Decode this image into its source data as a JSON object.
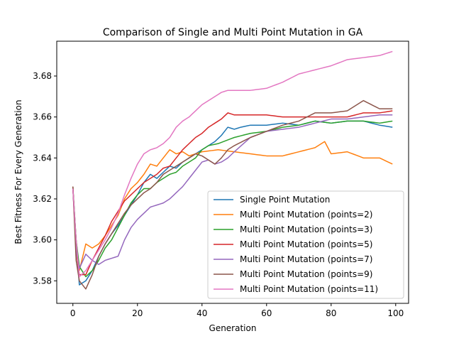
{
  "chart_data": {
    "type": "line",
    "title": "Comparison of Single and Multi Point Mutation in GA",
    "xlabel": "Generation",
    "ylabel": "Best Fitness For Every Generation",
    "xlim": [
      -5,
      104
    ],
    "ylim": [
      3.569,
      3.697
    ],
    "xticks": [
      0,
      20,
      40,
      60,
      80,
      100
    ],
    "yticks": [
      3.58,
      3.6,
      3.62,
      3.64,
      3.66,
      3.68
    ],
    "ytick_labels": [
      "3.58",
      "3.60",
      "3.62",
      "3.64",
      "3.66",
      "3.68"
    ],
    "grid": false,
    "legend_position": "lower right",
    "x_points": 100,
    "series": [
      {
        "name": "Single Point Mutation",
        "color": "#1f77b4",
        "keypoints": [
          [
            0,
            3.625
          ],
          [
            1,
            3.6
          ],
          [
            2,
            3.578
          ],
          [
            4,
            3.58
          ],
          [
            6,
            3.585
          ],
          [
            8,
            3.592
          ],
          [
            10,
            3.598
          ],
          [
            12,
            3.603
          ],
          [
            14,
            3.607
          ],
          [
            16,
            3.612
          ],
          [
            18,
            3.617
          ],
          [
            20,
            3.622
          ],
          [
            22,
            3.628
          ],
          [
            24,
            3.632
          ],
          [
            26,
            3.63
          ],
          [
            28,
            3.633
          ],
          [
            30,
            3.636
          ],
          [
            32,
            3.635
          ],
          [
            34,
            3.638
          ],
          [
            36,
            3.64
          ],
          [
            38,
            3.642
          ],
          [
            40,
            3.644
          ],
          [
            42,
            3.646
          ],
          [
            44,
            3.648
          ],
          [
            46,
            3.651
          ],
          [
            48,
            3.655
          ],
          [
            50,
            3.654
          ],
          [
            52,
            3.655
          ],
          [
            55,
            3.656
          ],
          [
            60,
            3.656
          ],
          [
            65,
            3.657
          ],
          [
            70,
            3.656
          ],
          [
            75,
            3.658
          ],
          [
            80,
            3.657
          ],
          [
            85,
            3.658
          ],
          [
            90,
            3.658
          ],
          [
            95,
            3.656
          ],
          [
            99,
            3.655
          ]
        ]
      },
      {
        "name": "Multi Point Mutation (points=2)",
        "color": "#ff7f0e",
        "keypoints": [
          [
            0,
            3.625
          ],
          [
            1,
            3.6
          ],
          [
            2,
            3.585
          ],
          [
            4,
            3.598
          ],
          [
            6,
            3.596
          ],
          [
            8,
            3.598
          ],
          [
            10,
            3.602
          ],
          [
            12,
            3.607
          ],
          [
            14,
            3.612
          ],
          [
            16,
            3.62
          ],
          [
            18,
            3.625
          ],
          [
            20,
            3.628
          ],
          [
            22,
            3.632
          ],
          [
            24,
            3.637
          ],
          [
            26,
            3.636
          ],
          [
            28,
            3.64
          ],
          [
            30,
            3.644
          ],
          [
            32,
            3.642
          ],
          [
            34,
            3.643
          ],
          [
            36,
            3.641
          ],
          [
            38,
            3.642
          ],
          [
            40,
            3.643
          ],
          [
            45,
            3.644
          ],
          [
            50,
            3.643
          ],
          [
            55,
            3.642
          ],
          [
            60,
            3.641
          ],
          [
            65,
            3.641
          ],
          [
            70,
            3.643
          ],
          [
            75,
            3.645
          ],
          [
            78,
            3.648
          ],
          [
            80,
            3.642
          ],
          [
            85,
            3.643
          ],
          [
            90,
            3.64
          ],
          [
            95,
            3.64
          ],
          [
            99,
            3.637
          ]
        ]
      },
      {
        "name": "Multi Point Mutation (points=3)",
        "color": "#2ca02c",
        "keypoints": [
          [
            0,
            3.626
          ],
          [
            1,
            3.6
          ],
          [
            2,
            3.587
          ],
          [
            4,
            3.582
          ],
          [
            6,
            3.585
          ],
          [
            8,
            3.59
          ],
          [
            10,
            3.596
          ],
          [
            12,
            3.6
          ],
          [
            14,
            3.606
          ],
          [
            16,
            3.612
          ],
          [
            18,
            3.618
          ],
          [
            20,
            3.622
          ],
          [
            22,
            3.625
          ],
          [
            24,
            3.625
          ],
          [
            26,
            3.628
          ],
          [
            28,
            3.63
          ],
          [
            30,
            3.632
          ],
          [
            32,
            3.633
          ],
          [
            34,
            3.636
          ],
          [
            36,
            3.638
          ],
          [
            38,
            3.64
          ],
          [
            40,
            3.644
          ],
          [
            42,
            3.646
          ],
          [
            45,
            3.647
          ],
          [
            50,
            3.65
          ],
          [
            55,
            3.652
          ],
          [
            60,
            3.653
          ],
          [
            65,
            3.655
          ],
          [
            70,
            3.656
          ],
          [
            75,
            3.658
          ],
          [
            80,
            3.657
          ],
          [
            85,
            3.658
          ],
          [
            90,
            3.658
          ],
          [
            95,
            3.657
          ],
          [
            99,
            3.658
          ]
        ]
      },
      {
        "name": "Multi Point Mutation (points=5)",
        "color": "#d62728",
        "keypoints": [
          [
            0,
            3.626
          ],
          [
            1,
            3.595
          ],
          [
            2,
            3.583
          ],
          [
            4,
            3.583
          ],
          [
            6,
            3.59
          ],
          [
            8,
            3.596
          ],
          [
            10,
            3.602
          ],
          [
            12,
            3.609
          ],
          [
            14,
            3.614
          ],
          [
            16,
            3.619
          ],
          [
            18,
            3.622
          ],
          [
            20,
            3.625
          ],
          [
            22,
            3.628
          ],
          [
            24,
            3.63
          ],
          [
            26,
            3.632
          ],
          [
            28,
            3.635
          ],
          [
            30,
            3.636
          ],
          [
            32,
            3.64
          ],
          [
            34,
            3.644
          ],
          [
            36,
            3.647
          ],
          [
            38,
            3.65
          ],
          [
            40,
            3.652
          ],
          [
            42,
            3.655
          ],
          [
            44,
            3.657
          ],
          [
            46,
            3.659
          ],
          [
            48,
            3.662
          ],
          [
            50,
            3.661
          ],
          [
            55,
            3.661
          ],
          [
            60,
            3.661
          ],
          [
            65,
            3.66
          ],
          [
            70,
            3.66
          ],
          [
            75,
            3.66
          ],
          [
            80,
            3.66
          ],
          [
            85,
            3.66
          ],
          [
            90,
            3.662
          ],
          [
            95,
            3.662
          ],
          [
            99,
            3.663
          ]
        ]
      },
      {
        "name": "Multi Point Mutation (points=7)",
        "color": "#9467bd",
        "keypoints": [
          [
            0,
            3.625
          ],
          [
            1,
            3.595
          ],
          [
            2,
            3.586
          ],
          [
            4,
            3.593
          ],
          [
            6,
            3.59
          ],
          [
            8,
            3.588
          ],
          [
            10,
            3.59
          ],
          [
            12,
            3.591
          ],
          [
            14,
            3.592
          ],
          [
            16,
            3.6
          ],
          [
            18,
            3.606
          ],
          [
            20,
            3.61
          ],
          [
            22,
            3.613
          ],
          [
            24,
            3.616
          ],
          [
            26,
            3.617
          ],
          [
            28,
            3.618
          ],
          [
            30,
            3.62
          ],
          [
            32,
            3.623
          ],
          [
            34,
            3.626
          ],
          [
            36,
            3.63
          ],
          [
            38,
            3.634
          ],
          [
            40,
            3.638
          ],
          [
            42,
            3.639
          ],
          [
            44,
            3.637
          ],
          [
            46,
            3.638
          ],
          [
            48,
            3.64
          ],
          [
            50,
            3.643
          ],
          [
            55,
            3.65
          ],
          [
            60,
            3.653
          ],
          [
            65,
            3.654
          ],
          [
            70,
            3.655
          ],
          [
            75,
            3.657
          ],
          [
            80,
            3.659
          ],
          [
            85,
            3.659
          ],
          [
            90,
            3.66
          ],
          [
            95,
            3.661
          ],
          [
            99,
            3.661
          ]
        ]
      },
      {
        "name": "Multi Point Mutation (points=9)",
        "color": "#8c564b",
        "keypoints": [
          [
            0,
            3.626
          ],
          [
            1,
            3.59
          ],
          [
            2,
            3.58
          ],
          [
            4,
            3.576
          ],
          [
            6,
            3.583
          ],
          [
            8,
            3.592
          ],
          [
            10,
            3.598
          ],
          [
            12,
            3.603
          ],
          [
            14,
            3.608
          ],
          [
            16,
            3.613
          ],
          [
            18,
            3.617
          ],
          [
            20,
            3.62
          ],
          [
            22,
            3.623
          ],
          [
            24,
            3.625
          ],
          [
            26,
            3.628
          ],
          [
            28,
            3.632
          ],
          [
            30,
            3.634
          ],
          [
            32,
            3.636
          ],
          [
            34,
            3.638
          ],
          [
            36,
            3.64
          ],
          [
            38,
            3.642
          ],
          [
            40,
            3.641
          ],
          [
            42,
            3.639
          ],
          [
            44,
            3.637
          ],
          [
            46,
            3.64
          ],
          [
            48,
            3.644
          ],
          [
            50,
            3.646
          ],
          [
            55,
            3.65
          ],
          [
            60,
            3.653
          ],
          [
            65,
            3.656
          ],
          [
            70,
            3.658
          ],
          [
            75,
            3.662
          ],
          [
            80,
            3.662
          ],
          [
            85,
            3.663
          ],
          [
            90,
            3.668
          ],
          [
            95,
            3.664
          ],
          [
            99,
            3.664
          ]
        ]
      },
      {
        "name": "Multi Point Mutation (points=11)",
        "color": "#e377c2",
        "keypoints": [
          [
            0,
            3.625
          ],
          [
            1,
            3.6
          ],
          [
            2,
            3.582
          ],
          [
            4,
            3.585
          ],
          [
            6,
            3.59
          ],
          [
            8,
            3.595
          ],
          [
            10,
            3.6
          ],
          [
            12,
            3.606
          ],
          [
            14,
            3.613
          ],
          [
            16,
            3.622
          ],
          [
            18,
            3.63
          ],
          [
            20,
            3.637
          ],
          [
            22,
            3.642
          ],
          [
            24,
            3.644
          ],
          [
            26,
            3.645
          ],
          [
            28,
            3.647
          ],
          [
            30,
            3.65
          ],
          [
            32,
            3.655
          ],
          [
            34,
            3.658
          ],
          [
            36,
            3.66
          ],
          [
            38,
            3.663
          ],
          [
            40,
            3.666
          ],
          [
            42,
            3.668
          ],
          [
            44,
            3.67
          ],
          [
            46,
            3.672
          ],
          [
            48,
            3.673
          ],
          [
            50,
            3.673
          ],
          [
            55,
            3.673
          ],
          [
            60,
            3.674
          ],
          [
            65,
            3.677
          ],
          [
            70,
            3.681
          ],
          [
            75,
            3.683
          ],
          [
            80,
            3.685
          ],
          [
            85,
            3.688
          ],
          [
            90,
            3.689
          ],
          [
            95,
            3.69
          ],
          [
            99,
            3.692
          ]
        ]
      }
    ]
  }
}
